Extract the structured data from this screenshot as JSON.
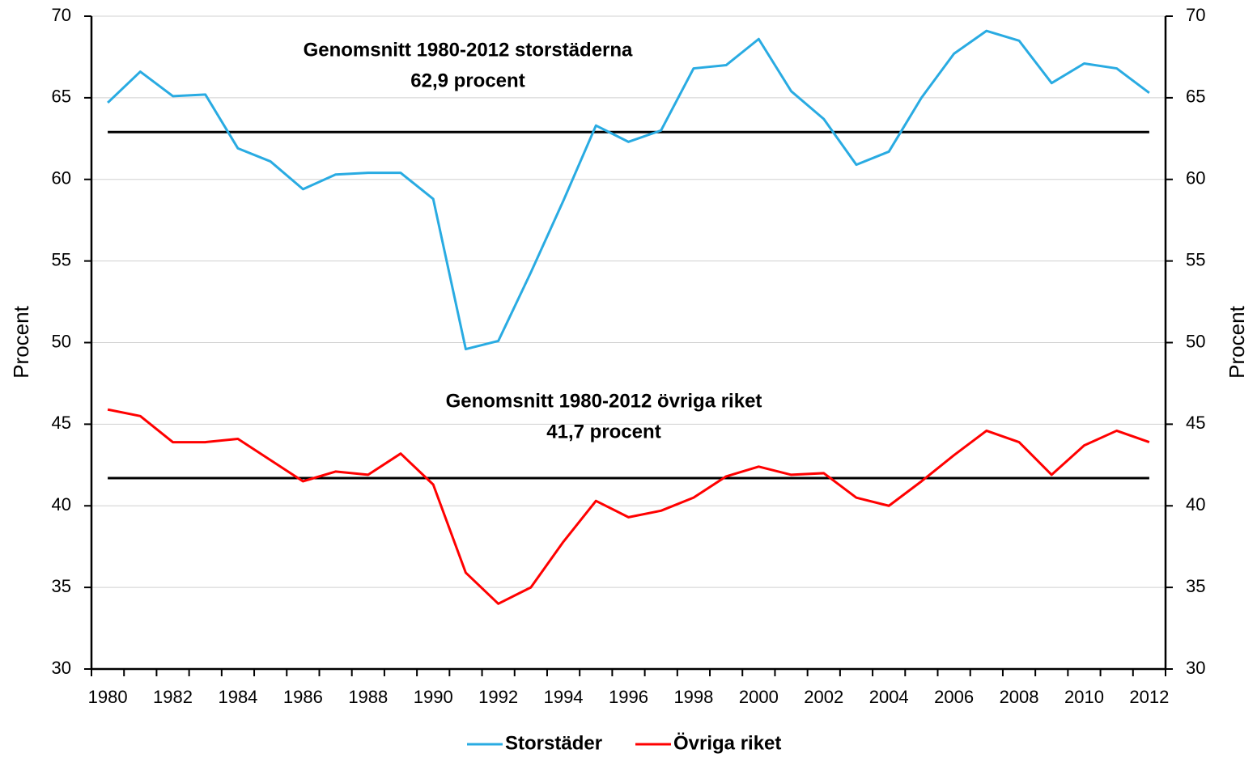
{
  "chart_data": {
    "type": "line",
    "ylabel": "Procent",
    "y2label": "Procent",
    "categories": [
      "1980",
      null,
      "1982",
      null,
      "1984",
      null,
      "1986",
      null,
      "1988",
      null,
      "1990",
      null,
      "1992",
      null,
      "1994",
      null,
      "1996",
      null,
      "1998",
      null,
      "2000",
      null,
      "2002",
      null,
      "2004",
      null,
      "2006",
      null,
      "2008",
      null,
      "2010",
      null,
      "2012"
    ],
    "series": [
      {
        "name": "Storstäder",
        "color": "#29abe2",
        "values": [
          64.7,
          66.6,
          65.1,
          65.2,
          61.9,
          61.1,
          59.4,
          60.3,
          60.4,
          60.4,
          58.8,
          49.6,
          50.1,
          54.3,
          58.7,
          63.3,
          62.3,
          63.0,
          66.8,
          67.0,
          68.6,
          65.4,
          63.7,
          60.9,
          61.7,
          65.0,
          67.7,
          69.1,
          68.5,
          65.9,
          67.1,
          66.8,
          65.3
        ]
      },
      {
        "name": "Övriga riket",
        "color": "#ff0000",
        "values": [
          45.9,
          45.5,
          43.9,
          43.9,
          44.1,
          42.8,
          41.5,
          42.1,
          41.9,
          43.2,
          41.3,
          35.9,
          34.0,
          35.0,
          37.8,
          40.3,
          39.3,
          39.7,
          40.5,
          41.8,
          42.4,
          41.9,
          42.0,
          40.5,
          40.0,
          41.5,
          43.1,
          44.6,
          43.9,
          41.9,
          43.7,
          44.6,
          43.9
        ]
      }
    ],
    "annotations": [
      {
        "lines": [
          "Genomsnitt  1980-2012 storstäderna",
          "62,9 procent"
        ],
        "value": 62.9,
        "color": "#000000"
      },
      {
        "lines": [
          "Genomsnitt  1980-2012 övriga riket",
          "41,7 procent"
        ],
        "value": 41.7,
        "color": "#000000"
      }
    ],
    "ylim": [
      30,
      70
    ],
    "yticks": [
      30,
      35,
      40,
      45,
      50,
      55,
      60,
      65,
      70
    ],
    "y2lim": [
      30,
      70
    ],
    "y2ticks": [
      30,
      35,
      40,
      45,
      50,
      55,
      60,
      65,
      70
    ],
    "grid": true,
    "legend": "bottom"
  }
}
